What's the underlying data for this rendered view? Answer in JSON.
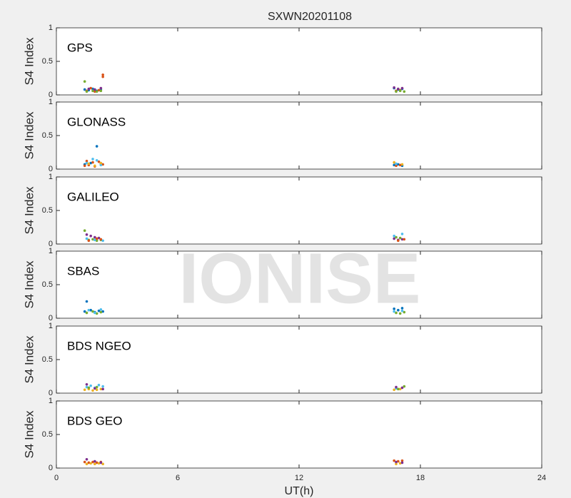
{
  "watermark": "IONISE",
  "chart_data": [
    {
      "type": "scatter",
      "title": "SXWN20201108",
      "ylabel": "S4 Index",
      "annotation": "GPS",
      "xlim": [
        0,
        24
      ],
      "ylim": [
        0,
        1
      ],
      "yticks": [
        0,
        0.5,
        1
      ],
      "series": [
        {
          "color": "#0072bd",
          "x": [
            1.4,
            1.6,
            1.8,
            2.0,
            2.2,
            16.7,
            16.9,
            17.1
          ],
          "values": [
            0.08,
            0.07,
            0.09,
            0.06,
            0.08,
            0.1,
            0.08,
            0.09
          ]
        },
        {
          "color": "#d95319",
          "x": [
            1.5,
            1.7,
            1.9,
            2.1,
            2.3,
            2.3,
            16.8,
            17.0
          ],
          "values": [
            0.06,
            0.1,
            0.05,
            0.07,
            0.3,
            0.27,
            0.06,
            0.07
          ]
        },
        {
          "color": "#77ac30",
          "x": [
            1.4,
            1.5,
            1.8,
            2.0,
            2.2,
            16.8,
            17.0,
            17.2
          ],
          "values": [
            0.2,
            0.05,
            0.06,
            0.05,
            0.06,
            0.05,
            0.06,
            0.05
          ]
        },
        {
          "color": "#7e2f8e",
          "x": [
            1.6,
            1.9,
            2.2,
            16.7,
            16.9,
            17.1
          ],
          "values": [
            0.09,
            0.08,
            0.1,
            0.11,
            0.09,
            0.1
          ]
        }
      ]
    },
    {
      "type": "scatter",
      "ylabel": "S4 Index",
      "annotation": "GLONASS",
      "xlim": [
        0,
        24
      ],
      "ylim": [
        0,
        1
      ],
      "yticks": [
        0,
        0.5,
        1
      ],
      "series": [
        {
          "color": "#0072bd",
          "x": [
            1.4,
            1.7,
            2.0,
            2.2,
            16.7,
            16.9,
            17.1
          ],
          "values": [
            0.07,
            0.09,
            0.34,
            0.08,
            0.06,
            0.07,
            0.05
          ]
        },
        {
          "color": "#d95319",
          "x": [
            1.4,
            1.5,
            1.6,
            1.8,
            1.9,
            2.1,
            2.3,
            16.8,
            17.0
          ],
          "values": [
            0.05,
            0.12,
            0.06,
            0.1,
            0.04,
            0.11,
            0.07,
            0.05,
            0.06
          ]
        },
        {
          "color": "#4dbeee",
          "x": [
            1.5,
            1.8,
            2.0,
            2.2,
            16.8
          ],
          "values": [
            0.09,
            0.15,
            0.13,
            0.06,
            0.08
          ]
        },
        {
          "color": "#edb120",
          "x": [
            1.6,
            1.9,
            2.2,
            16.7,
            17.1
          ],
          "values": [
            0.08,
            0.05,
            0.09,
            0.1,
            0.07
          ]
        }
      ]
    },
    {
      "type": "scatter",
      "ylabel": "S4 Index",
      "annotation": "GALILEO",
      "xlim": [
        0,
        24
      ],
      "ylim": [
        0,
        1
      ],
      "yticks": [
        0,
        0.5,
        1
      ],
      "series": [
        {
          "color": "#7e2f8e",
          "x": [
            1.5,
            1.7,
            1.9,
            2.1,
            16.7,
            16.9,
            17.1
          ],
          "values": [
            0.14,
            0.12,
            0.1,
            0.09,
            0.08,
            0.06,
            0.07
          ]
        },
        {
          "color": "#77ac30",
          "x": [
            1.4,
            1.6,
            1.8,
            2.0,
            2.2,
            16.8,
            17.0
          ],
          "values": [
            0.2,
            0.06,
            0.07,
            0.05,
            0.06,
            0.1,
            0.09
          ]
        },
        {
          "color": "#4dbeee",
          "x": [
            1.5,
            1.9,
            2.3,
            16.7,
            17.1
          ],
          "values": [
            0.08,
            0.06,
            0.05,
            0.12,
            0.15
          ]
        },
        {
          "color": "#d95319",
          "x": [
            1.6,
            2.0,
            2.2,
            16.9,
            17.2
          ],
          "values": [
            0.05,
            0.08,
            0.07,
            0.05,
            0.07
          ]
        }
      ]
    },
    {
      "type": "scatter",
      "ylabel": "S4 Index",
      "annotation": "SBAS",
      "xlim": [
        0,
        24
      ],
      "ylim": [
        0,
        1
      ],
      "yticks": [
        0,
        0.5,
        1
      ],
      "series": [
        {
          "color": "#0072bd",
          "x": [
            1.4,
            1.5,
            1.7,
            1.9,
            2.1,
            2.3,
            16.7,
            16.9,
            17.1
          ],
          "values": [
            0.1,
            0.25,
            0.12,
            0.09,
            0.11,
            0.1,
            0.14,
            0.12,
            0.15
          ]
        },
        {
          "color": "#77ac30",
          "x": [
            1.5,
            1.8,
            2.0,
            2.2,
            16.8,
            17.0,
            17.2
          ],
          "values": [
            0.08,
            0.1,
            0.07,
            0.09,
            0.08,
            0.07,
            0.09
          ]
        },
        {
          "color": "#4dbeee",
          "x": [
            1.6,
            1.9,
            2.2,
            16.7,
            17.1
          ],
          "values": [
            0.12,
            0.08,
            0.13,
            0.1,
            0.11
          ]
        }
      ]
    },
    {
      "type": "scatter",
      "ylabel": "S4 Index",
      "annotation": "BDS NGEO",
      "xlim": [
        0,
        24
      ],
      "ylim": [
        0,
        1
      ],
      "yticks": [
        0,
        0.5,
        1
      ],
      "series": [
        {
          "color": "#4dbeee",
          "x": [
            1.5,
            1.7,
            1.9,
            2.1,
            2.3,
            16.8
          ],
          "values": [
            0.09,
            0.11,
            0.08,
            0.12,
            0.1,
            0.07
          ]
        },
        {
          "color": "#edb120",
          "x": [
            1.4,
            1.6,
            1.8,
            2.0,
            2.2,
            16.7,
            17.0
          ],
          "values": [
            0.05,
            0.06,
            0.04,
            0.05,
            0.06,
            0.05,
            0.06
          ]
        },
        {
          "color": "#7e2f8e",
          "x": [
            1.5,
            1.9,
            2.3,
            16.8,
            17.1
          ],
          "values": [
            0.13,
            0.07,
            0.06,
            0.09,
            0.08
          ]
        },
        {
          "color": "#77ac30",
          "x": [
            1.6,
            2.0,
            16.9,
            17.2
          ],
          "values": [
            0.08,
            0.09,
            0.06,
            0.1
          ]
        }
      ]
    },
    {
      "type": "scatter",
      "ylabel": "S4 Index",
      "annotation": "BDS GEO",
      "xlabel": "UT(h)",
      "xlim": [
        0,
        24
      ],
      "ylim": [
        0,
        1
      ],
      "yticks": [
        0,
        0.5,
        1
      ],
      "xticks": [
        0,
        6,
        12,
        18,
        24
      ],
      "series": [
        {
          "color": "#d95319",
          "x": [
            1.4,
            1.6,
            1.8,
            2.0,
            2.2,
            16.7,
            16.9,
            17.1
          ],
          "values": [
            0.09,
            0.08,
            0.09,
            0.08,
            0.09,
            0.11,
            0.1,
            0.11
          ]
        },
        {
          "color": "#edb120",
          "x": [
            1.5,
            1.7,
            1.9,
            2.1,
            2.3,
            16.8,
            17.0
          ],
          "values": [
            0.06,
            0.07,
            0.06,
            0.07,
            0.06,
            0.06,
            0.07
          ]
        },
        {
          "color": "#7e2f8e",
          "x": [
            1.5,
            1.9,
            2.2,
            16.8,
            17.1
          ],
          "values": [
            0.13,
            0.1,
            0.08,
            0.09,
            0.08
          ]
        }
      ]
    }
  ]
}
